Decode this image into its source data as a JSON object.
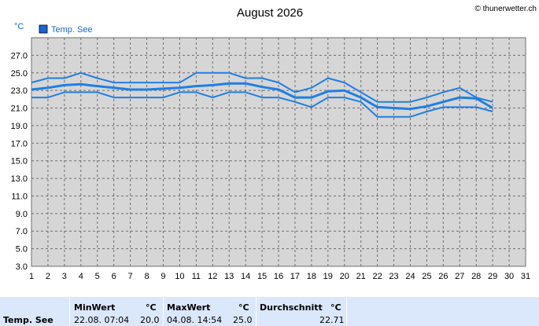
{
  "copyright": "© thunerwetter.ch",
  "chart_data": {
    "type": "line",
    "title": "August 2026",
    "ylabel": "°C",
    "ylim": [
      3,
      29
    ],
    "xlim": [
      1,
      31
    ],
    "x_ticks": [
      "1",
      "2",
      "3",
      "4",
      "5",
      "6",
      "7",
      "8",
      "9",
      "10",
      "11",
      "12",
      "13",
      "14",
      "15",
      "16",
      "17",
      "18",
      "19",
      "20",
      "21",
      "22",
      "23",
      "24",
      "25",
      "26",
      "27",
      "28",
      "29",
      "30",
      "31"
    ],
    "y_ticks": [
      "3.0",
      "5.0",
      "7.0",
      "9.0",
      "11.0",
      "13.0",
      "15.0",
      "17.0",
      "19.0",
      "21.0",
      "23.0",
      "25.0",
      "27.0"
    ],
    "grid": true,
    "legend": "top-left",
    "legend_label": "Temp. See",
    "colors": {
      "line": "#1e7fe6",
      "legend_box": "#1565d8",
      "plot_bg": "#d6d6d6"
    },
    "x": [
      1,
      2,
      3,
      4,
      5,
      6,
      7,
      8,
      9,
      10,
      11,
      12,
      13,
      14,
      15,
      16,
      17,
      18,
      19,
      20,
      21,
      22,
      23,
      24,
      25,
      26,
      27,
      28,
      29
    ],
    "series": [
      {
        "role": "max",
        "values": [
          23.9,
          24.4,
          24.4,
          25.0,
          24.4,
          23.9,
          23.9,
          23.9,
          23.9,
          23.9,
          25.0,
          25.0,
          25.0,
          24.4,
          24.4,
          23.9,
          22.8,
          23.3,
          24.4,
          23.9,
          22.8,
          21.7,
          21.7,
          21.7,
          22.2,
          22.8,
          23.3,
          22.2,
          21.7
        ]
      },
      {
        "role": "avg",
        "values": [
          23.1,
          23.3,
          23.6,
          23.7,
          23.5,
          23.3,
          23.1,
          23.1,
          23.2,
          23.3,
          23.5,
          23.6,
          23.8,
          23.8,
          23.4,
          23.1,
          22.2,
          22.2,
          22.9,
          23.0,
          22.2,
          21.1,
          21.0,
          20.9,
          21.2,
          21.7,
          22.2,
          22.1,
          21.0
        ]
      },
      {
        "role": "min",
        "values": [
          22.2,
          22.2,
          22.8,
          22.8,
          22.8,
          22.2,
          22.2,
          22.2,
          22.2,
          22.8,
          22.8,
          22.2,
          22.8,
          22.8,
          22.2,
          22.2,
          21.7,
          21.1,
          22.2,
          22.2,
          21.7,
          20.0,
          20.0,
          20.0,
          20.6,
          21.1,
          21.1,
          21.1,
          20.6
        ]
      }
    ]
  },
  "stats": {
    "row_label": "Temp. See",
    "min": {
      "header": "MinWert",
      "unit": "°C",
      "datetime": "22.08.  07:04",
      "value": "20.0"
    },
    "max": {
      "header": "MaxWert",
      "unit": "°C",
      "datetime": "04.08.  14:54",
      "value": "25.0"
    },
    "avg": {
      "header": "Durchschnitt",
      "unit": "°C",
      "value": "22.71"
    }
  }
}
